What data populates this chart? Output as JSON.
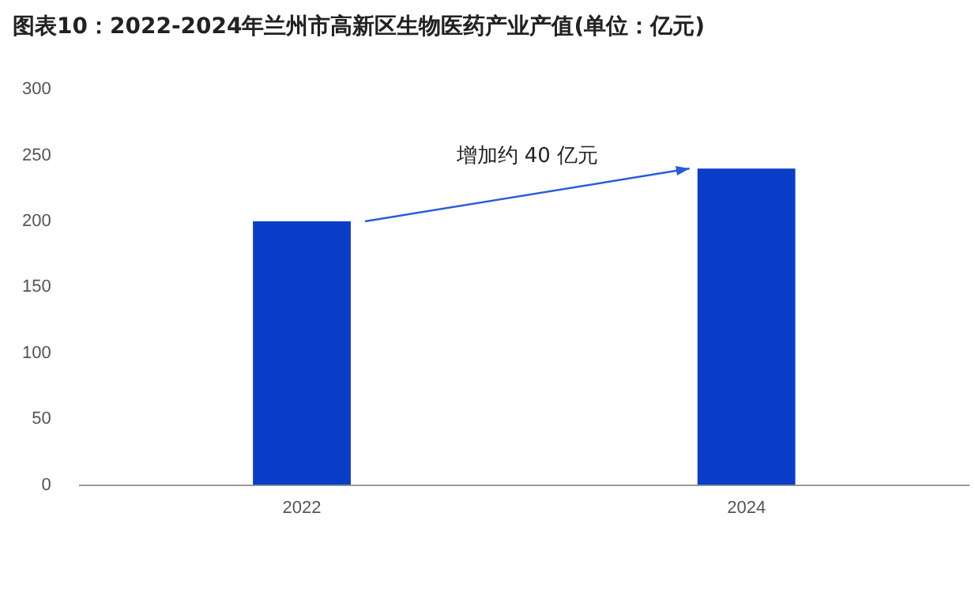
{
  "chart_data": {
    "type": "bar",
    "title": "图表10：2022-2024年兰州市高新区生物医药产业产值(单位：亿元)",
    "categories": [
      "2022",
      "2024"
    ],
    "values": [
      200,
      240
    ],
    "color": "#0a3ec8",
    "ylim": [
      0,
      300
    ],
    "yticks": [
      0,
      50,
      100,
      150,
      200,
      250,
      300
    ],
    "grid": false,
    "legend": false,
    "annotations": [
      "增加约 40 亿元"
    ]
  }
}
